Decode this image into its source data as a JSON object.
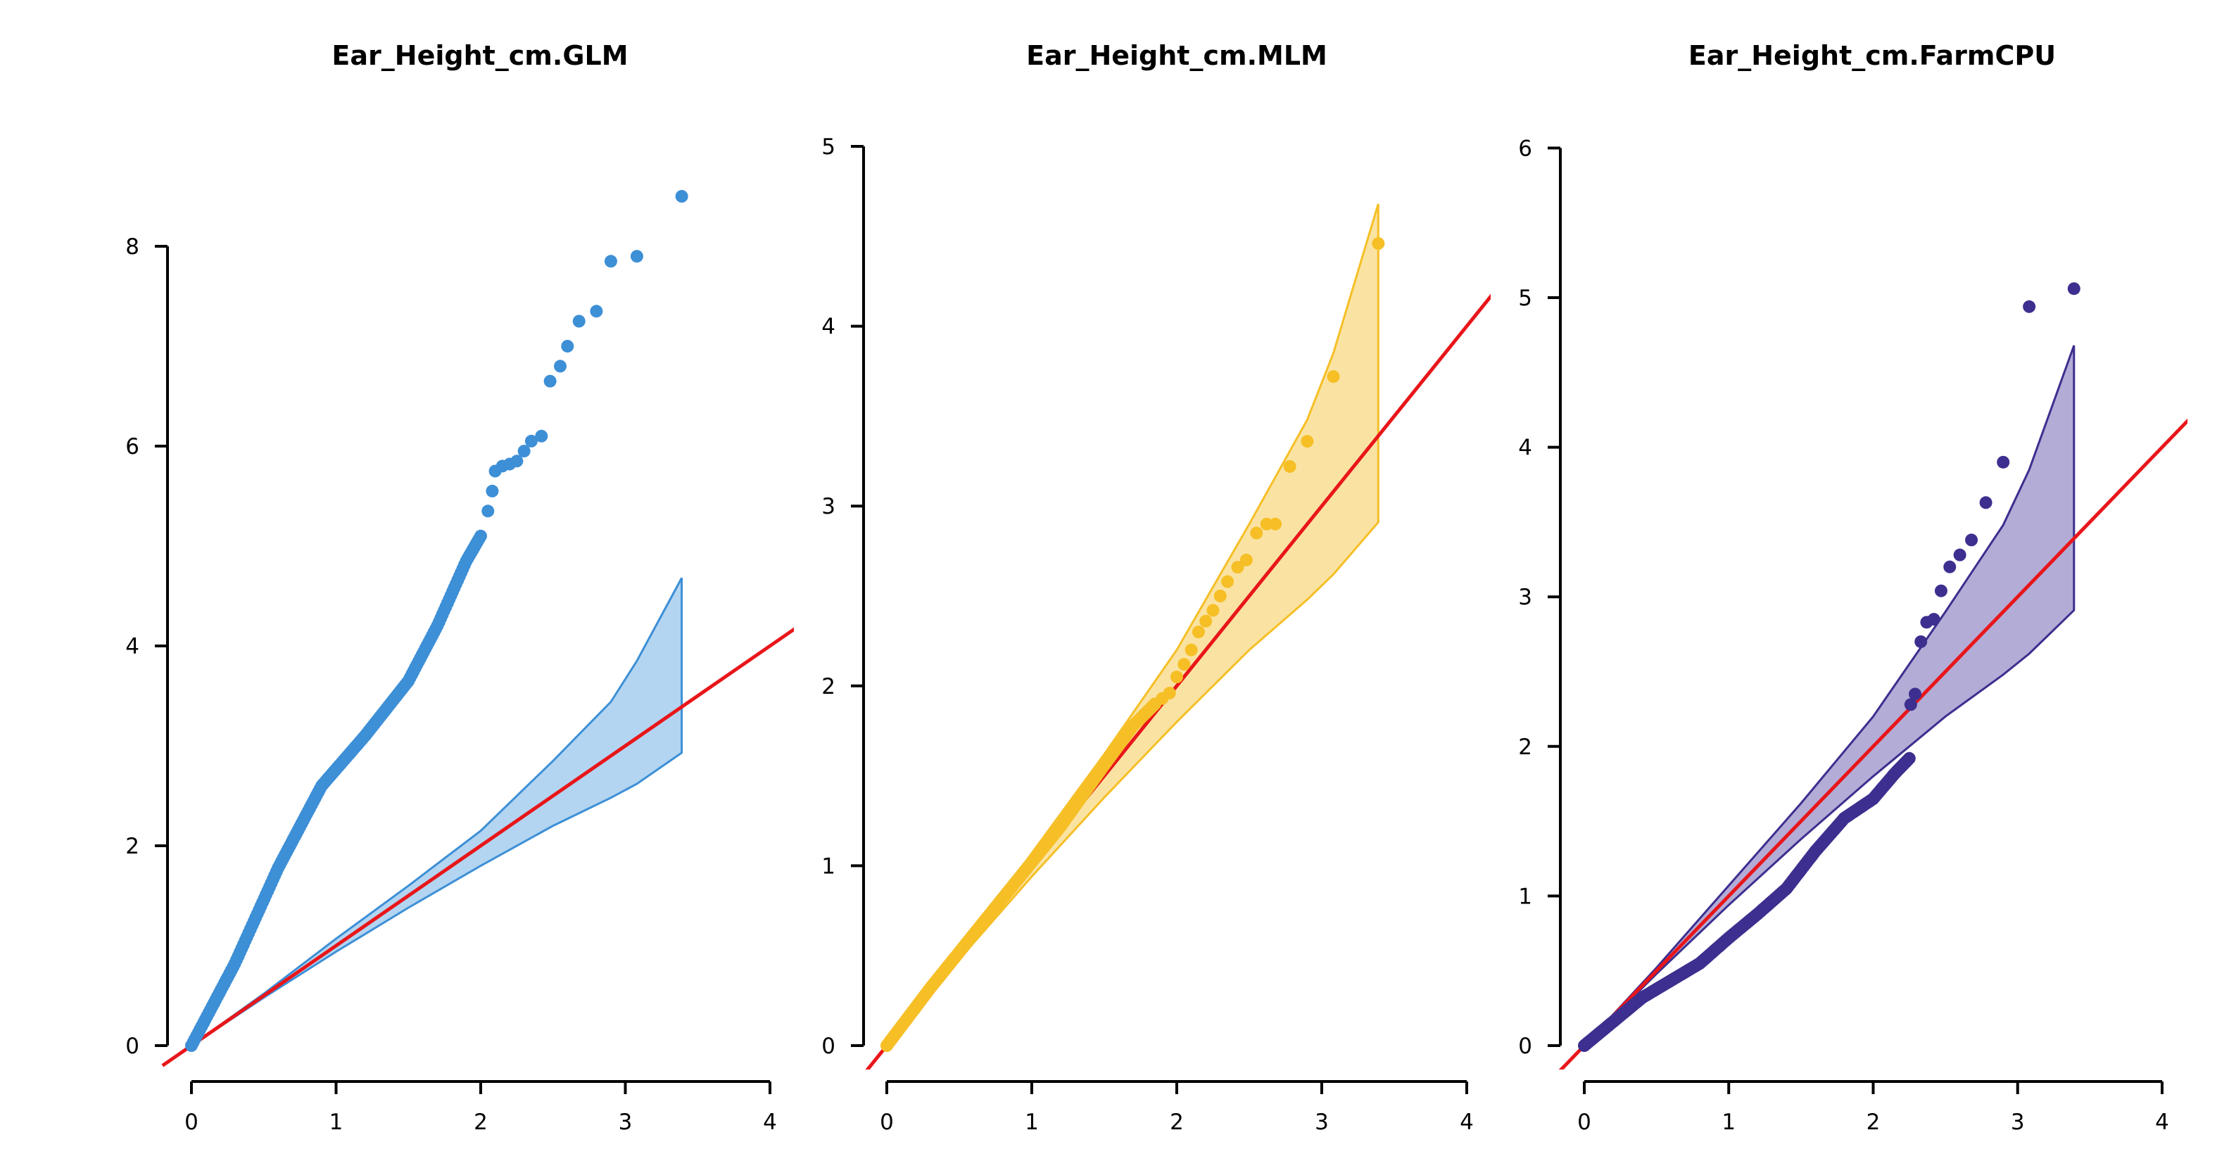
{
  "chart_data": [
    {
      "type": "scatter",
      "title": "Ear_Height_cm.GLM",
      "xlabel": "",
      "ylabel": "",
      "xlim": [
        0,
        4
      ],
      "ylim": [
        0,
        8.5
      ],
      "x_ticks": [
        "0",
        "1",
        "2",
        "3",
        "4"
      ],
      "y_ticks": [
        "0",
        "2",
        "4",
        "6",
        "8"
      ],
      "color": "#3d8fd6",
      "band_fill": "#b3d5f1",
      "reference_line": {
        "color": "#e8161a",
        "slope": 1,
        "intercept": 0
      },
      "confidence_band": {
        "x": [
          0,
          0.5,
          1.0,
          1.5,
          2.0,
          2.5,
          2.9,
          3.08,
          3.39
        ],
        "lower": [
          0,
          0.48,
          0.94,
          1.38,
          1.8,
          2.2,
          2.48,
          2.62,
          2.93
        ],
        "upper": [
          0,
          0.52,
          1.07,
          1.6,
          2.15,
          2.85,
          3.44,
          3.85,
          4.68
        ]
      },
      "curve_points": {
        "x": [
          0,
          0.3,
          0.6,
          0.9,
          1.2,
          1.5,
          1.7,
          1.9,
          2.0
        ],
        "y": [
          0,
          0.82,
          1.78,
          2.6,
          3.1,
          3.65,
          4.2,
          4.85,
          5.1
        ]
      },
      "extra_points": {
        "x": [
          2.05,
          2.08,
          2.1,
          2.15,
          2.2,
          2.25,
          2.3,
          2.35,
          2.42,
          2.48,
          2.55,
          2.6,
          2.68,
          2.8,
          2.9,
          3.08,
          3.39
        ],
        "y": [
          5.35,
          5.55,
          5.75,
          5.8,
          5.82,
          5.85,
          5.95,
          6.05,
          6.1,
          6.65,
          6.8,
          7.0,
          7.25,
          7.35,
          7.85,
          7.9,
          8.5
        ]
      }
    },
    {
      "type": "scatter",
      "title": "Ear_Height_cm.MLM",
      "xlabel": "",
      "ylabel": "",
      "xlim": [
        0,
        4
      ],
      "ylim": [
        0,
        5
      ],
      "x_ticks": [
        "0",
        "1",
        "2",
        "3",
        "4"
      ],
      "y_ticks": [
        "0",
        "1",
        "2",
        "3",
        "4",
        "5"
      ],
      "color": "#f6bf26",
      "band_fill": "#fae3a2",
      "reference_line": {
        "color": "#e8161a",
        "slope": 1,
        "intercept": 0
      },
      "confidence_band": {
        "x": [
          0,
          0.5,
          1.0,
          1.5,
          2.0,
          2.5,
          2.9,
          3.08,
          3.39
        ],
        "lower": [
          0,
          0.48,
          0.94,
          1.38,
          1.8,
          2.2,
          2.48,
          2.62,
          2.91
        ],
        "upper": [
          0,
          0.52,
          1.07,
          1.62,
          2.2,
          2.9,
          3.48,
          3.85,
          4.68
        ]
      },
      "curve_points": {
        "x": [
          0,
          0.3,
          0.6,
          0.9,
          1.2,
          1.5,
          1.7,
          1.85
        ],
        "y": [
          0,
          0.32,
          0.62,
          0.92,
          1.22,
          1.56,
          1.78,
          1.9
        ]
      },
      "extra_points": {
        "x": [
          1.9,
          1.95,
          2.0,
          2.05,
          2.1,
          2.15,
          2.2,
          2.25,
          2.3,
          2.35,
          2.42,
          2.48,
          2.55,
          2.62,
          2.68,
          2.78,
          2.9,
          3.08,
          3.39
        ],
        "y": [
          1.93,
          1.96,
          2.05,
          2.12,
          2.2,
          2.3,
          2.36,
          2.42,
          2.5,
          2.58,
          2.66,
          2.7,
          2.85,
          2.9,
          2.9,
          3.22,
          3.36,
          3.72,
          4.46
        ]
      }
    },
    {
      "type": "scatter",
      "title": "Ear_Height_cm.FarmCPU",
      "xlabel": "",
      "ylabel": "",
      "xlim": [
        0,
        4
      ],
      "ylim": [
        0,
        6
      ],
      "x_ticks": [
        "0",
        "1",
        "2",
        "3",
        "4"
      ],
      "y_ticks": [
        "0",
        "1",
        "2",
        "3",
        "4",
        "5",
        "6"
      ],
      "color": "#3c2f8f",
      "band_fill": "#b3acd6",
      "reference_line": {
        "color": "#e8161a",
        "slope": 1,
        "intercept": 0
      },
      "confidence_band": {
        "x": [
          0,
          0.5,
          1.0,
          1.5,
          2.0,
          2.5,
          2.9,
          3.08,
          3.39
        ],
        "lower": [
          0,
          0.48,
          0.94,
          1.38,
          1.8,
          2.2,
          2.48,
          2.62,
          2.91
        ],
        "upper": [
          0,
          0.52,
          1.07,
          1.62,
          2.2,
          2.9,
          3.48,
          3.85,
          4.68
        ]
      },
      "curve_points": {
        "x": [
          0,
          0.4,
          0.8,
          1.0,
          1.2,
          1.4,
          1.6,
          1.8,
          2.0,
          2.15,
          2.25
        ],
        "y": [
          0,
          0.32,
          0.55,
          0.72,
          0.88,
          1.05,
          1.3,
          1.52,
          1.65,
          1.82,
          1.92
        ]
      },
      "extra_points": {
        "x": [
          2.26,
          2.29,
          2.33,
          2.37,
          2.42,
          2.47,
          2.53,
          2.6,
          2.68,
          2.78,
          2.9,
          3.08,
          3.39
        ],
        "y": [
          2.28,
          2.35,
          2.7,
          2.83,
          2.85,
          3.04,
          3.2,
          3.28,
          3.38,
          3.63,
          3.9,
          4.94,
          5.06
        ]
      }
    }
  ]
}
